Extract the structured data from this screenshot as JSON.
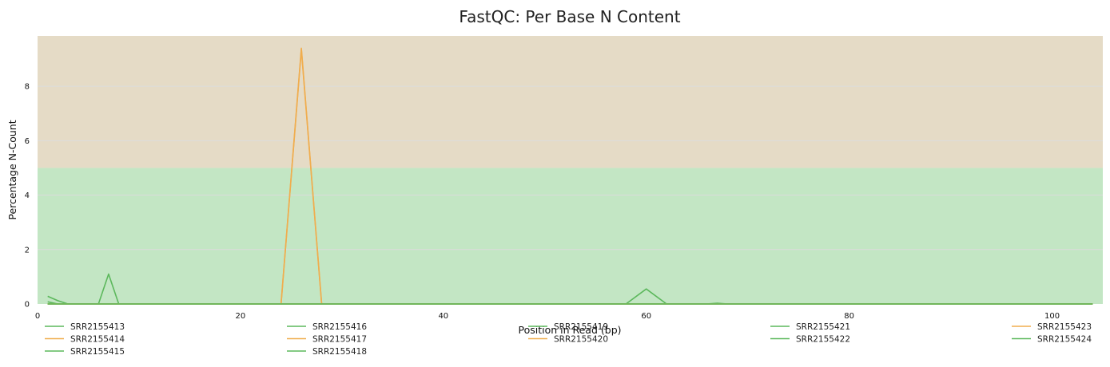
{
  "chart_data": {
    "type": "line",
    "title": "FastQC: Per Base N Content",
    "xlabel": "Position in Read (bp)",
    "ylabel": "Percentage N-Count",
    "xlim": [
      0,
      105
    ],
    "ylim": [
      0,
      9.85
    ],
    "x_ticks": [
      0,
      20,
      40,
      60,
      80,
      100
    ],
    "y_ticks": [
      0,
      2,
      4,
      6,
      8
    ],
    "grid": true,
    "bands": [
      {
        "from": 0,
        "to": 5,
        "color": "#c3e6c4"
      },
      {
        "from": 5,
        "to": 9.85,
        "color": "#e5dbc6"
      }
    ],
    "legend_position": "bottom",
    "series": [
      {
        "name": "SRR2155413",
        "color": "#5cb85c",
        "x": [
          1,
          2,
          3,
          4,
          5,
          6,
          7,
          8,
          9,
          10,
          20,
          40,
          60,
          80,
          100,
          104
        ],
        "y": [
          0.28,
          0.12,
          0,
          0,
          0,
          0,
          1.1,
          0,
          0,
          0,
          0,
          0,
          0,
          0,
          0,
          0
        ]
      },
      {
        "name": "SRR2155414",
        "color": "#f0ad4e",
        "x": [
          1,
          10,
          20,
          24,
          26,
          28,
          40,
          60,
          80,
          104
        ],
        "y": [
          0,
          0,
          0,
          0,
          9.4,
          0,
          0,
          0,
          0,
          0
        ]
      },
      {
        "name": "SRR2155415",
        "color": "#5cb85c",
        "x": [
          1,
          2,
          3,
          20,
          40,
          104
        ],
        "y": [
          0.08,
          0,
          0,
          0,
          0,
          0
        ]
      },
      {
        "name": "SRR2155416",
        "color": "#5cb85c",
        "x": [
          1,
          20,
          40,
          58,
          60,
          62,
          80,
          104
        ],
        "y": [
          0,
          0,
          0,
          0,
          0.55,
          0,
          0,
          0
        ]
      },
      {
        "name": "SRR2155417",
        "color": "#f0ad4e",
        "x": [
          1,
          20,
          24,
          26,
          28,
          40,
          104
        ],
        "y": [
          0,
          0,
          0,
          9.35,
          0,
          0,
          0
        ]
      },
      {
        "name": "SRR2155418",
        "color": "#5cb85c",
        "x": [
          1,
          20,
          40,
          66,
          67,
          68,
          104
        ],
        "y": [
          0,
          0,
          0,
          0,
          0.03,
          0,
          0
        ]
      },
      {
        "name": "SRR2155419",
        "color": "#5cb85c",
        "x": [
          1,
          40,
          104
        ],
        "y": [
          0,
          0,
          0
        ]
      },
      {
        "name": "SRR2155420",
        "color": "#f0ad4e",
        "x": [
          1,
          40,
          104
        ],
        "y": [
          0,
          0,
          0
        ]
      },
      {
        "name": "SRR2155421",
        "color": "#5cb85c",
        "x": [
          1,
          40,
          104
        ],
        "y": [
          0,
          0,
          0
        ]
      },
      {
        "name": "SRR2155422",
        "color": "#5cb85c",
        "x": [
          1,
          40,
          104
        ],
        "y": [
          0,
          0,
          0
        ]
      },
      {
        "name": "SRR2155423",
        "color": "#f0ad4e",
        "x": [
          1,
          40,
          104
        ],
        "y": [
          0,
          0,
          0
        ]
      },
      {
        "name": "SRR2155424",
        "color": "#5cb85c",
        "x": [
          1,
          40,
          104
        ],
        "y": [
          0,
          0,
          0
        ]
      }
    ]
  }
}
